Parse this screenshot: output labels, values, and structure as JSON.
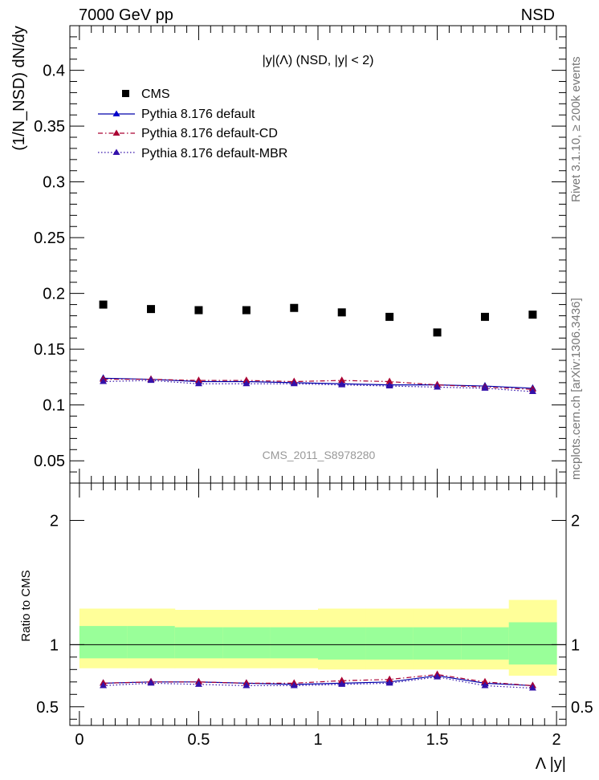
{
  "header": {
    "left": "7000 GeV pp",
    "right": "NSD"
  },
  "side_labels": {
    "rivet": "Rivet 3.1.10, ≥ 200k events",
    "mcplots": "mcplots.cern.ch [arXiv:1306.3436]"
  },
  "watermark": "CMS_2011_S8978280",
  "colors": {
    "cms": "#000000",
    "default": "#0000aa",
    "cd": "#aa0033",
    "mbr": "#3311aa",
    "band_inner": "#99ff99",
    "band_outer": "#ffff99"
  },
  "chart_data": [
    {
      "type": "scatter",
      "title": "|y|(Λ) (NSD, |y| < 2)",
      "ylabel": "(1/N_NSD) dN/dy",
      "xlabel": "Λ |y|",
      "xlim": [
        -0.04,
        2.04
      ],
      "ylim": [
        0.03,
        0.44
      ],
      "yticks": [
        0.05,
        0.1,
        0.15,
        0.2,
        0.25,
        0.3,
        0.35,
        0.4
      ],
      "ytick_labels": [
        "0.05",
        "0.1",
        "0.15",
        "0.2",
        "0.25",
        "0.3",
        "0.35",
        "0.4"
      ],
      "legend_position": "top-left",
      "x": [
        0.1,
        0.3,
        0.5,
        0.7,
        0.9,
        1.1,
        1.3,
        1.5,
        1.7,
        1.9
      ],
      "series": [
        {
          "name": "CMS",
          "key": "cms",
          "style": "marker",
          "values": [
            0.19,
            0.186,
            0.185,
            0.185,
            0.187,
            0.183,
            0.179,
            0.165,
            0.179,
            0.181
          ]
        },
        {
          "name": "Pythia 8.176 default",
          "key": "default",
          "style": "solid",
          "values": [
            0.124,
            0.123,
            0.121,
            0.121,
            0.12,
            0.119,
            0.118,
            0.118,
            0.117,
            0.115
          ]
        },
        {
          "name": "Pythia 8.176 default-CD",
          "key": "cd",
          "style": "dashdot",
          "values": [
            0.123,
            0.123,
            0.122,
            0.122,
            0.121,
            0.122,
            0.121,
            0.118,
            0.116,
            0.114
          ]
        },
        {
          "name": "Pythia 8.176 default-MBR",
          "key": "mbr",
          "style": "dotted",
          "values": [
            0.121,
            0.122,
            0.119,
            0.119,
            0.119,
            0.118,
            0.117,
            0.116,
            0.115,
            0.112
          ]
        }
      ]
    },
    {
      "type": "line",
      "ylabel": "Ratio to CMS",
      "xlabel": "Λ |y|",
      "xlim": [
        -0.04,
        2.04
      ],
      "ylim": [
        0.35,
        2.3
      ],
      "yticks": [
        0.5,
        1,
        2
      ],
      "ytick_labels": [
        "0.5",
        "1",
        "2"
      ],
      "xticks": [
        0,
        0.5,
        1,
        1.5,
        2
      ],
      "xtick_labels": [
        "0",
        "0.5",
        "1",
        "1.5",
        "2"
      ],
      "bins": [
        [
          0.0,
          0.2
        ],
        [
          0.2,
          0.4
        ],
        [
          0.4,
          0.6
        ],
        [
          0.6,
          0.8
        ],
        [
          0.8,
          1.0
        ],
        [
          1.0,
          1.2
        ],
        [
          1.2,
          1.4
        ],
        [
          1.4,
          1.6
        ],
        [
          1.6,
          1.8
        ],
        [
          1.8,
          2.0
        ]
      ],
      "band_inner": [
        [
          0.89,
          1.15
        ],
        [
          0.89,
          1.15
        ],
        [
          0.89,
          1.14
        ],
        [
          0.89,
          1.14
        ],
        [
          0.89,
          1.14
        ],
        [
          0.88,
          1.14
        ],
        [
          0.88,
          1.14
        ],
        [
          0.88,
          1.14
        ],
        [
          0.88,
          1.14
        ],
        [
          0.84,
          1.18
        ]
      ],
      "band_outer": [
        [
          0.81,
          1.29
        ],
        [
          0.81,
          1.29
        ],
        [
          0.81,
          1.28
        ],
        [
          0.81,
          1.28
        ],
        [
          0.81,
          1.28
        ],
        [
          0.8,
          1.29
        ],
        [
          0.8,
          1.29
        ],
        [
          0.8,
          1.29
        ],
        [
          0.8,
          1.29
        ],
        [
          0.75,
          1.36
        ]
      ],
      "x": [
        0.1,
        0.3,
        0.5,
        0.7,
        0.9,
        1.1,
        1.3,
        1.5,
        1.7,
        1.9
      ],
      "series": [
        {
          "name": "Pythia 8.176 default",
          "key": "default",
          "style": "solid",
          "values": [
            0.69,
            0.7,
            0.7,
            0.69,
            0.68,
            0.69,
            0.7,
            0.75,
            0.69,
            0.67
          ]
        },
        {
          "name": "Pythia 8.176 default-CD",
          "key": "cd",
          "style": "dashdot",
          "values": [
            0.69,
            0.7,
            0.7,
            0.69,
            0.69,
            0.71,
            0.72,
            0.76,
            0.7,
            0.67
          ]
        },
        {
          "name": "Pythia 8.176 default-MBR",
          "key": "mbr",
          "style": "dotted",
          "values": [
            0.67,
            0.69,
            0.68,
            0.67,
            0.67,
            0.68,
            0.69,
            0.74,
            0.67,
            0.65
          ]
        }
      ]
    }
  ]
}
